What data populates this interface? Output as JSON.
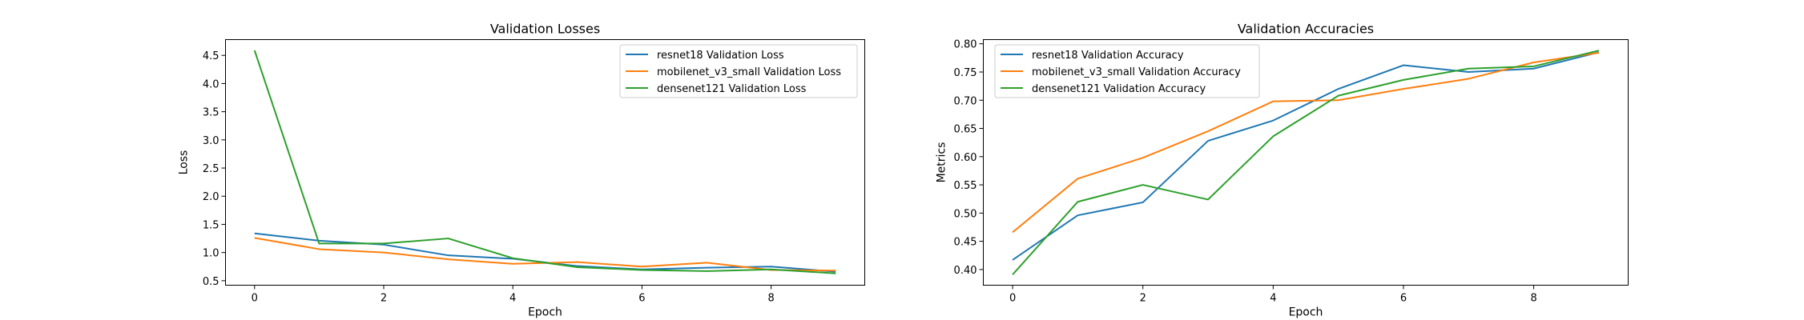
{
  "chart_data": [
    {
      "type": "line",
      "title": "Validation Losses",
      "xlabel": "Epoch",
      "ylabel": "Loss",
      "xlim": [
        -0.45,
        9.45
      ],
      "ylim": [
        0.42,
        4.78
      ],
      "xticks": [
        0,
        2,
        4,
        6,
        8
      ],
      "xtick_labels": [
        "0",
        "2",
        "4",
        "6",
        "8"
      ],
      "yticks": [
        0.5,
        1.0,
        1.5,
        2.0,
        2.5,
        3.0,
        3.5,
        4.0,
        4.5
      ],
      "ytick_labels": [
        "0.5",
        "1.0",
        "1.5",
        "2.0",
        "2.5",
        "3.0",
        "3.5",
        "4.0",
        "4.5"
      ],
      "grid": false,
      "legend_position": "top-right",
      "x": [
        0,
        1,
        2,
        3,
        4,
        5,
        6,
        7,
        8,
        9
      ],
      "series": [
        {
          "name": "resnet18 Validation Loss",
          "color": "#1f77b4",
          "values": [
            1.34,
            1.21,
            1.14,
            0.95,
            0.89,
            0.76,
            0.7,
            0.73,
            0.75,
            0.66
          ]
        },
        {
          "name": "mobilenet_v3_small Validation Loss",
          "color": "#ff7f0e",
          "values": [
            1.26,
            1.06,
            1.0,
            0.88,
            0.8,
            0.83,
            0.75,
            0.82,
            0.69,
            0.68
          ]
        },
        {
          "name": "densenet121 Validation Loss",
          "color": "#2ca02c",
          "values": [
            4.59,
            1.16,
            1.16,
            1.25,
            0.9,
            0.74,
            0.69,
            0.67,
            0.7,
            0.63
          ]
        }
      ]
    },
    {
      "type": "line",
      "title": "Validation Accuracies",
      "xlabel": "Epoch",
      "ylabel": "Metrics",
      "xlim": [
        -0.45,
        9.45
      ],
      "ylim": [
        0.3722,
        0.8074
      ],
      "xticks": [
        0,
        2,
        4,
        6,
        8
      ],
      "xtick_labels": [
        "0",
        "2",
        "4",
        "6",
        "8"
      ],
      "yticks": [
        0.4,
        0.45,
        0.5,
        0.55,
        0.6,
        0.65,
        0.7,
        0.75,
        0.8
      ],
      "ytick_labels": [
        "0.40",
        "0.45",
        "0.50",
        "0.55",
        "0.60",
        "0.65",
        "0.70",
        "0.75",
        "0.80"
      ],
      "grid": false,
      "legend_position": "top-left",
      "x": [
        0,
        1,
        2,
        3,
        4,
        5,
        6,
        7,
        8,
        9
      ],
      "series": [
        {
          "name": "resnet18 Validation Accuracy",
          "color": "#1f77b4",
          "values": [
            0.417,
            0.496,
            0.519,
            0.628,
            0.664,
            0.72,
            0.762,
            0.75,
            0.756,
            0.785
          ]
        },
        {
          "name": "mobilenet_v3_small Validation Accuracy",
          "color": "#ff7f0e",
          "values": [
            0.466,
            0.561,
            0.598,
            0.645,
            0.698,
            0.7,
            0.72,
            0.738,
            0.767,
            0.784
          ]
        },
        {
          "name": "densenet121 Validation Accuracy",
          "color": "#2ca02c",
          "values": [
            0.391,
            0.52,
            0.55,
            0.524,
            0.636,
            0.708,
            0.736,
            0.756,
            0.76,
            0.788
          ]
        }
      ]
    }
  ]
}
